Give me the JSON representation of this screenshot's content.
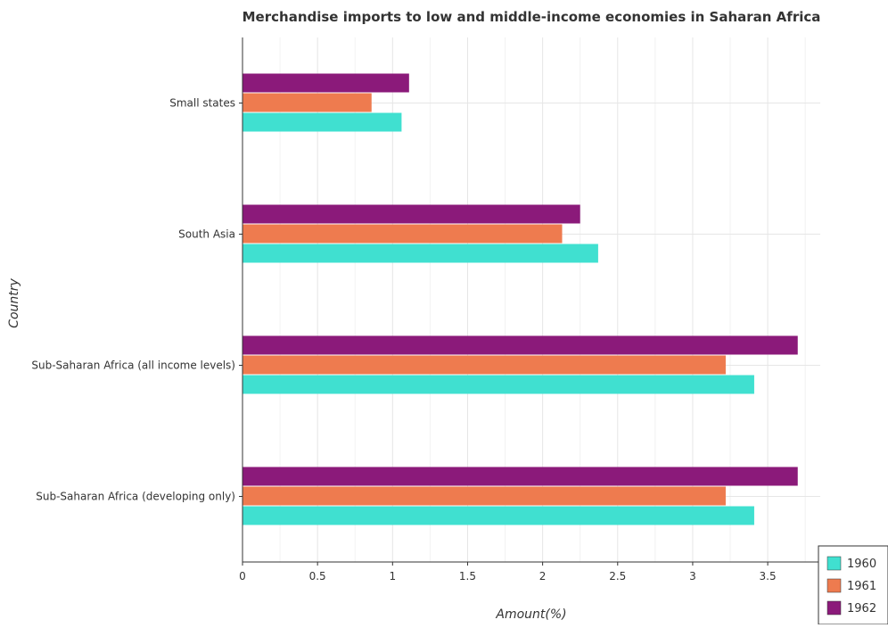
{
  "chart_data": {
    "type": "bar",
    "orientation": "horizontal",
    "title": "Merchandise imports to low and middle-income economies in Saharan Africa",
    "xlabel": "Amount(%)",
    "ylabel": "Country",
    "xlim": [
      0,
      3.85
    ],
    "xticks": [
      "0",
      "0.5",
      "1",
      "1.5",
      "2",
      "2.5",
      "3",
      "3.5"
    ],
    "categories": [
      "Small states",
      "South Asia",
      "Sub-Saharan Africa (all income levels)",
      "Sub-Saharan Africa (developing only)"
    ],
    "series": [
      {
        "name": "1960",
        "color": "#40e0d0",
        "values": [
          1.06,
          2.37,
          3.41,
          3.41
        ]
      },
      {
        "name": "1961",
        "color": "#ee7b4f",
        "values": [
          0.86,
          2.13,
          3.22,
          3.22
        ]
      },
      {
        "name": "1962",
        "color": "#8b1a7a",
        "values": [
          1.11,
          2.25,
          3.7,
          3.7
        ]
      }
    ],
    "grid": true,
    "legend_position": "bottom-right"
  }
}
